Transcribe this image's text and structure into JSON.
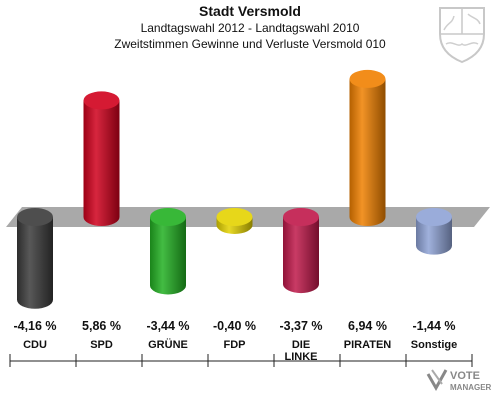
{
  "header": {
    "title": "Stadt Versmold",
    "subtitle1": "Landtagswahl 2012 - Landtagswahl 2010",
    "subtitle2": "Zweitstimmen Gewinne und Verluste Versmold 010"
  },
  "brand": {
    "vote_line1": "VOTE",
    "vote_line2": "MANAGER"
  },
  "chart_data": {
    "type": "bar",
    "categories": [
      "CDU",
      "SPD",
      "GRÜNE",
      "FDP",
      "DIE LINKE",
      "PIRATEN",
      "Sonstige"
    ],
    "category_lines": [
      [
        "CDU"
      ],
      [
        "SPD"
      ],
      [
        "GRÜNE"
      ],
      [
        "FDP"
      ],
      [
        "DIE",
        "LINKE"
      ],
      [
        "PIRATEN"
      ],
      [
        "Sonstige"
      ]
    ],
    "values": [
      -4.16,
      5.86,
      -3.44,
      -0.4,
      -3.37,
      6.94,
      -1.44
    ],
    "value_labels": [
      "-4,16 %",
      "5,86 %",
      "-3,44 %",
      "-0,40 %",
      "-3,37 %",
      "6,94 %",
      "-1,44 %"
    ],
    "colors": [
      "#3a3a3a",
      "#d0001c",
      "#22b022",
      "#e4d200",
      "#c0184a",
      "#f08000",
      "#8fa3d6"
    ],
    "baseline": 0,
    "grid": false,
    "legend": "none"
  }
}
